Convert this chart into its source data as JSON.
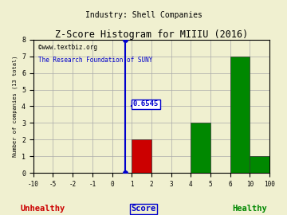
{
  "title": "Z-Score Histogram for MIIIU (2016)",
  "subtitle": "Industry: Shell Companies",
  "watermark1": "©www.textbiz.org",
  "watermark2": "The Research Foundation of SUNY",
  "xlabel_center": "Score",
  "xlabel_left": "Unhealthy",
  "xlabel_right": "Healthy",
  "ylabel": "Number of companies (13 total)",
  "bin_edges": [
    -10,
    -5,
    -2,
    -1,
    0,
    1,
    2,
    3,
    4,
    5,
    6,
    10,
    100
  ],
  "counts": [
    0,
    0,
    0,
    0,
    0,
    2,
    0,
    0,
    3,
    0,
    7,
    1
  ],
  "bar_colors": [
    "#cc0000",
    "#cc0000",
    "#cc0000",
    "#cc0000",
    "#cc0000",
    "#cc0000",
    "#ffffff",
    "#008800",
    "#008800",
    "#008800",
    "#008800",
    "#008800"
  ],
  "zscore": 0.6545,
  "annotation_text": "0.6545",
  "ylim": [
    0,
    8
  ],
  "yticks": [
    0,
    1,
    2,
    3,
    4,
    5,
    6,
    7,
    8
  ],
  "bg_color": "#f0f0d0",
  "grid_color": "#aaaaaa",
  "unhealthy_color": "#cc0000",
  "healthy_color": "#008800",
  "blue_color": "#0000cc",
  "annotation_bg": "#ffffff"
}
